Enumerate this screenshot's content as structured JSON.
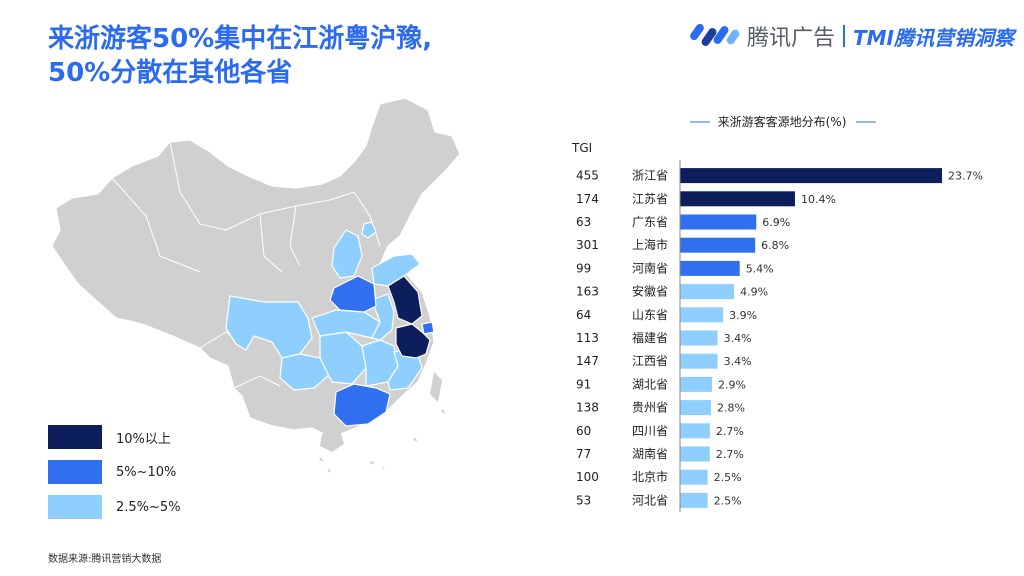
{
  "title_lines": [
    "来浙游客50%集中在江浙粤沪豫,",
    "50%分散在其他各省"
  ],
  "brand": {
    "name": "腾讯广告",
    "sub": "TMI腾讯营销洞察",
    "colors": [
      "#2a6bf2",
      "#1b3f9c",
      "#6fb0ff"
    ]
  },
  "legend": [
    {
      "label": "10%以上",
      "color": "#0c1f5c"
    },
    {
      "label": "5%~10%",
      "color": "#2f6ff0"
    },
    {
      "label": "2.5%~5%",
      "color": "#8ecfff"
    }
  ],
  "source": "数据来源:腾讯营销大数据",
  "colors": {
    "map_base": "#d0d0d0",
    "bar_high": "#0c1f5c",
    "bar_mid": "#2f6ff0",
    "bar_low": "#8ecfff"
  },
  "chart_data": {
    "type": "bar",
    "orientation": "horizontal",
    "title": "来浙游客客源地分布(%)",
    "side_label": "TGI",
    "categories": [
      "浙江省",
      "江苏省",
      "广东省",
      "上海市",
      "河南省",
      "安徽省",
      "山东省",
      "福建省",
      "江西省",
      "湖北省",
      "贵州省",
      "四川省",
      "湖南省",
      "北京市",
      "河北省"
    ],
    "values": [
      23.7,
      10.4,
      6.9,
      6.8,
      5.4,
      4.9,
      3.9,
      3.4,
      3.4,
      2.9,
      2.8,
      2.7,
      2.7,
      2.5,
      2.5
    ],
    "value_labels": [
      "23.7%",
      "10.4%",
      "6.9%",
      "6.8%",
      "5.4%",
      "4.9%",
      "3.9%",
      "3.4%",
      "3.4%",
      "2.9%",
      "2.8%",
      "2.7%",
      "2.7%",
      "2.5%",
      "2.5%"
    ],
    "tgi": [
      455,
      174,
      63,
      301,
      99,
      163,
      64,
      113,
      147,
      91,
      138,
      60,
      77,
      100,
      53
    ],
    "xlim": [
      0,
      23.7
    ]
  }
}
